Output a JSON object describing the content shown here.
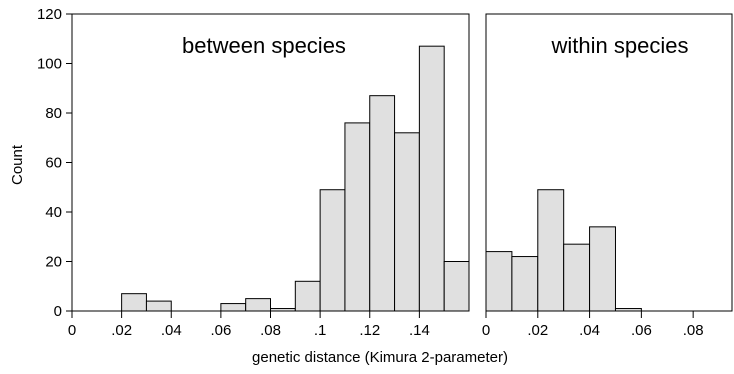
{
  "chart_data": {
    "type": "bar",
    "ylabel": "Count",
    "xlabel": "genetic distance (Kimura 2-parameter)",
    "ylim": [
      0,
      120
    ],
    "yticks": [
      0,
      20,
      40,
      60,
      80,
      100,
      120
    ],
    "ytick_labels": [
      "0",
      "20",
      "40",
      "60",
      "80",
      "100",
      "120"
    ],
    "bar_color": "#e0e0e0",
    "grid": false,
    "panels": [
      {
        "title": "between species",
        "xlim": [
          0,
          0.16
        ],
        "xticks": [
          0,
          0.02,
          0.04,
          0.06,
          0.08,
          0.1,
          0.12,
          0.14
        ],
        "xtick_labels": [
          "0",
          ".02",
          ".04",
          ".06",
          ".08",
          ".1",
          ".12",
          ".14"
        ],
        "bin_width": 0.01,
        "bins": [
          {
            "x0": 0.02,
            "count": 7
          },
          {
            "x0": 0.03,
            "count": 4
          },
          {
            "x0": 0.06,
            "count": 3
          },
          {
            "x0": 0.07,
            "count": 5
          },
          {
            "x0": 0.08,
            "count": 1
          },
          {
            "x0": 0.09,
            "count": 12
          },
          {
            "x0": 0.1,
            "count": 49
          },
          {
            "x0": 0.11,
            "count": 76
          },
          {
            "x0": 0.12,
            "count": 87
          },
          {
            "x0": 0.13,
            "count": 72
          },
          {
            "x0": 0.14,
            "count": 107
          },
          {
            "x0": 0.15,
            "count": 20
          }
        ]
      },
      {
        "title": "within species",
        "xlim": [
          0,
          0.095
        ],
        "xticks": [
          0,
          0.02,
          0.04,
          0.06,
          0.08
        ],
        "xtick_labels": [
          "0",
          ".02",
          ".04",
          ".06",
          ".08"
        ],
        "bin_width": 0.01,
        "bins": [
          {
            "x0": 0.0,
            "count": 24
          },
          {
            "x0": 0.01,
            "count": 22
          },
          {
            "x0": 0.02,
            "count": 49
          },
          {
            "x0": 0.03,
            "count": 27
          },
          {
            "x0": 0.04,
            "count": 34
          },
          {
            "x0": 0.05,
            "count": 1
          }
        ]
      }
    ]
  }
}
